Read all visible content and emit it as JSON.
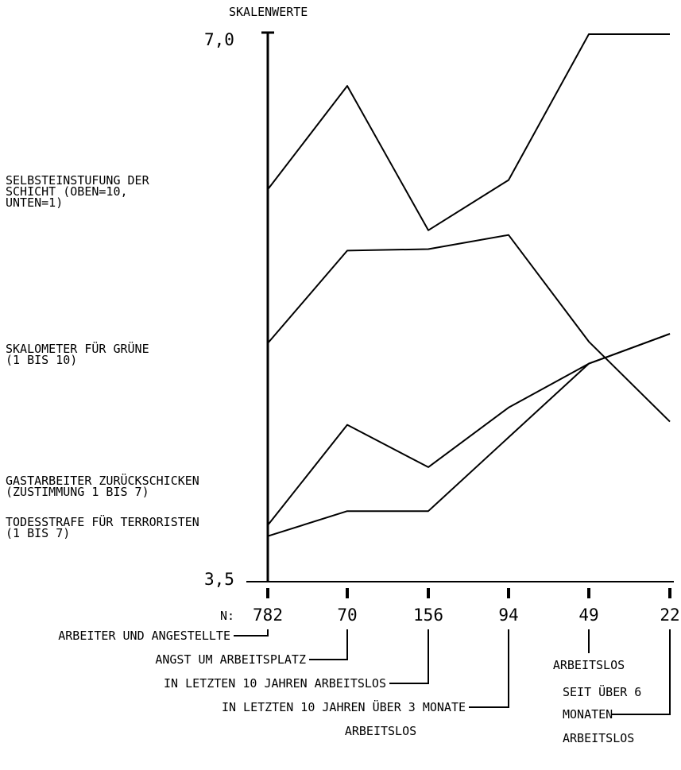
{
  "chart_data": {
    "type": "line",
    "y_axis_title": "SKALENWERTE",
    "ylim": [
      3.5,
      7.0
    ],
    "y_tick_labels": [
      "7,0",
      "3,5"
    ],
    "n_prefix": "N:",
    "n_labels": [
      "782",
      "70",
      "156",
      "94",
      "49",
      "22"
    ],
    "categories": [
      "ARBEITER UND ANGESTELLTE",
      "ANGST UM ARBEITSPLATZ",
      "IN LETZTEN 10 JAHREN ARBEITSLOS",
      "IN LETZTEN 10 JAHREN ÜBER 3 MONATE ARBEITSLOS",
      "ARBEITSLOS",
      "SEIT ÜBER 6 MONATEN ARBEITSLOS"
    ],
    "category_label_lines": [
      [
        "ARBEITER UND ANGESTELLTE"
      ],
      [
        "ANGST UM ARBEITSPLATZ"
      ],
      [
        "IN LETZTEN 10 JAHREN ARBEITSLOS"
      ],
      [
        "IN LETZTEN 10 JAHREN ÜBER 3 MONATE",
        "ARBEITSLOS"
      ],
      [
        "ARBEITSLOS"
      ],
      [
        "SEIT ÜBER 6",
        "MONATEN",
        "ARBEITSLOS"
      ]
    ],
    "series": [
      {
        "name": "SELBSTEINSTUFUNG DER SCHICHT (OBEN=10, UNTEN=1)",
        "label_lines": [
          "SELBSTEINSTUFUNG DER",
          "SCHICHT (OBEN=10,",
          "UNTEN=1)"
        ],
        "values": [
          6.0,
          6.66,
          5.74,
          6.06,
          6.99,
          6.99
        ]
      },
      {
        "name": "SKALOMETER FÜR GRÜNE (1 BIS 10)",
        "label_lines": [
          "SKALOMETER FÜR GRÜNE",
          "(1 BIS 10)"
        ],
        "values": [
          5.02,
          5.61,
          5.62,
          5.71,
          5.03,
          4.52
        ]
      },
      {
        "name": "GASTARBEITER ZURÜCKSCHICKEN (ZUSTIMMUNG 1 BIS 7)",
        "label_lines": [
          "GASTARBEITER ZURÜCKSCHICKEN",
          "(ZUSTIMMUNG 1 BIS 7)"
        ],
        "values": [
          3.86,
          4.5,
          4.23,
          4.61,
          4.89,
          5.08
        ]
      },
      {
        "name": "TODESSTRAFE FÜR TERRORISTEN (1 BIS 7)",
        "label_lines": [
          "TODESSTRAFE FÜR TERRORISTEN",
          "(1 BIS 7)"
        ],
        "values": [
          3.79,
          3.95,
          3.95,
          4.42,
          4.89,
          5.08
        ]
      }
    ]
  }
}
